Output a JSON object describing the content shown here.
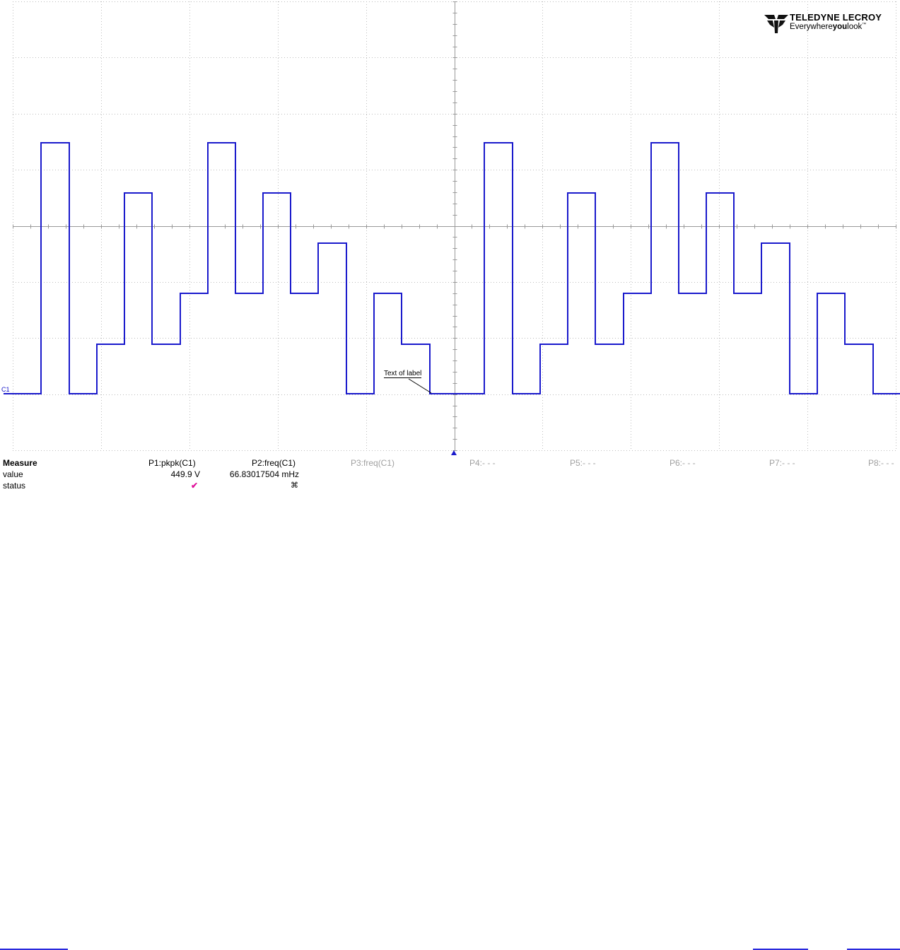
{
  "logo": {
    "brand": "TELEDYNE LECROY",
    "tagline_prefix": "Everywhere",
    "tagline_bold": "you",
    "tagline_suffix": "look",
    "tm": "™"
  },
  "trace": {
    "channel_label": "C1",
    "color": "#1a1acc",
    "annotation": "Text of label"
  },
  "measure": {
    "header": "Measure",
    "row_value": "value",
    "row_status": "status",
    "params": [
      "P1:pkpk(C1)",
      "P2:freq(C1)",
      "P3:freq(C1)",
      "P4:- - -",
      "P5:- - -",
      "P6:- - -",
      "P7:- - -",
      "P8:- - -"
    ],
    "p1_value": "449.9 V",
    "p2_value": "66.83017504 mHz"
  }
}
